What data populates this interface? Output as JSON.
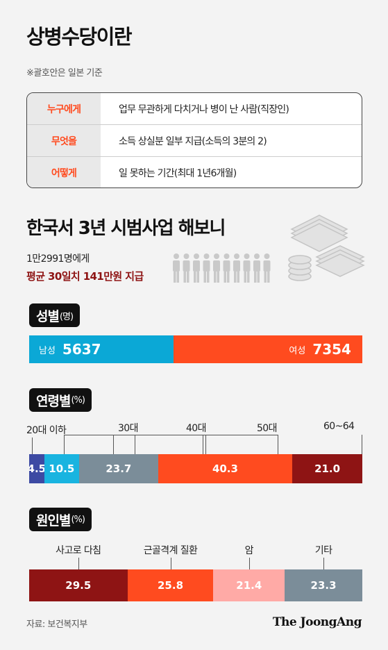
{
  "title": "상병수당이란",
  "note": "※괄호안은 일본 기준",
  "definition": [
    {
      "key": "누구에게",
      "value": "업무 무관하게 다치거나 병이 난 사람(직장인)"
    },
    {
      "key": "무엇을",
      "value": "소득 상실분 일부 지급(소득의 3분의 2)"
    },
    {
      "key": "어떻게",
      "value": "일 못하는 기간(최대 1년6개월)"
    }
  ],
  "section_title": "한국서 3년 시범사업 해보니",
  "summary_line1": "1만2991명에게",
  "summary_line2": "평균 30일치 141만원 지급",
  "colors": {
    "orange": "#ff4b1f",
    "blue": "#0ba8d6",
    "navy": "#3d4aa3",
    "lightblue": "#19b4e0",
    "gray": "#7b8d99",
    "darkred": "#8e1414",
    "pink": "#ffaaa6"
  },
  "icons": [
    "people-icon",
    "money-stack-icon"
  ],
  "chart_data": [
    {
      "type": "bar",
      "title": "성별",
      "unit": "(명)",
      "categories": [
        "남성",
        "여성"
      ],
      "values": [
        5637,
        7354
      ]
    },
    {
      "type": "bar",
      "title": "연령별",
      "unit": "(%)",
      "categories": [
        "20대 이하",
        "30대",
        "40대",
        "50대",
        "60~64"
      ],
      "values": [
        4.5,
        10.5,
        23.7,
        40.3,
        21.0
      ],
      "value_labels": [
        "4.5",
        "10.5",
        "23.7",
        "40.3",
        "21.0"
      ]
    },
    {
      "type": "bar",
      "title": "원인별",
      "unit": "(%)",
      "categories": [
        "사고로 다침",
        "근골격계 질환",
        "암",
        "기타"
      ],
      "values": [
        29.5,
        25.8,
        21.4,
        23.3
      ],
      "value_labels": [
        "29.5",
        "25.8",
        "21.4",
        "23.3"
      ]
    }
  ],
  "source": "자료: 보건복지부",
  "brand": "The JoongAng"
}
